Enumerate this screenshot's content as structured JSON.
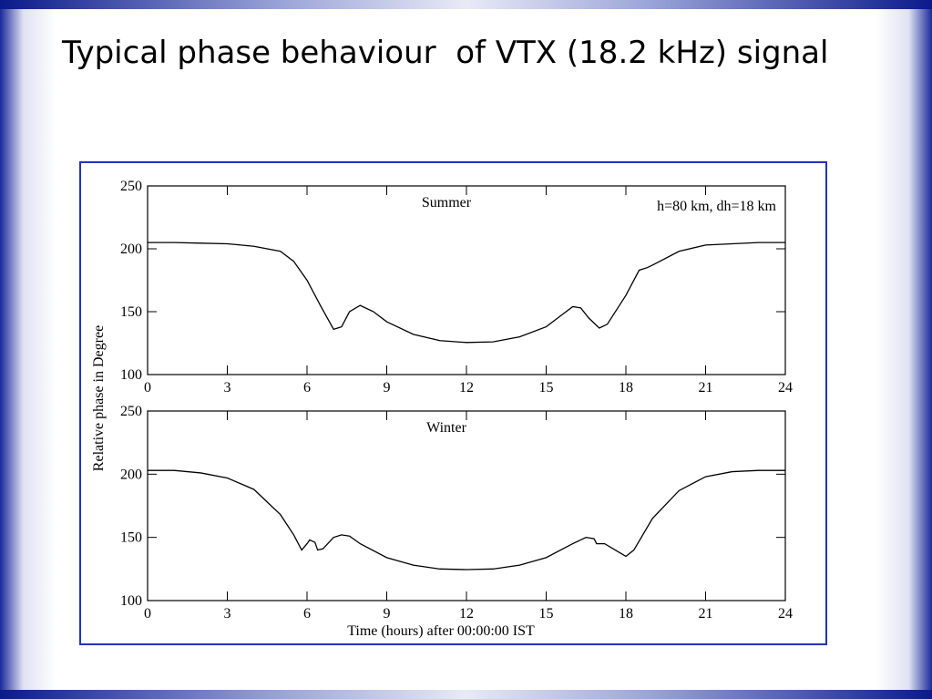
{
  "slide_title": "Typical phase behaviour  of VTX (18.2 kHz) signal",
  "ylabel": "Relative phase in Degree",
  "chart_data": [
    {
      "type": "line",
      "title": "Summer",
      "annotation": "h=80 km, dh=18 km",
      "color": "#000000",
      "x": [
        0,
        1,
        2,
        3,
        4,
        5,
        5.5,
        6,
        6.5,
        7,
        7.3,
        7.6,
        8,
        8.5,
        9,
        10,
        11,
        12,
        13,
        14,
        15,
        15.5,
        16,
        16.3,
        16.6,
        17,
        17.3,
        18,
        18.5,
        18.8,
        19,
        20,
        21,
        22,
        23,
        24
      ],
      "values": [
        205,
        205,
        204.5,
        204,
        202,
        198,
        190,
        175,
        155,
        136,
        138,
        150,
        155,
        150,
        142,
        132,
        127,
        125.5,
        126,
        130,
        138,
        146,
        154,
        153,
        145,
        137,
        140,
        163,
        183,
        185,
        187,
        198,
        203,
        204,
        205,
        205
      ],
      "xlim": [
        0,
        24
      ],
      "xticks": [
        0,
        3,
        6,
        9,
        12,
        15,
        18,
        21,
        24
      ],
      "ylim": [
        100,
        250
      ],
      "yticks": [
        100,
        150,
        200,
        250
      ]
    },
    {
      "type": "line",
      "title": "Winter",
      "xlabel": "Time (hours) after 00:00:00 IST",
      "color": "#000000",
      "x": [
        0,
        1,
        2,
        3,
        4,
        5,
        5.5,
        5.8,
        6,
        6.1,
        6.3,
        6.4,
        6.6,
        7,
        7.3,
        7.6,
        8,
        9,
        10,
        11,
        12,
        13,
        14,
        15,
        16,
        16.5,
        16.8,
        16.9,
        17.2,
        17.6,
        18,
        18.3,
        19,
        20,
        21,
        22,
        23,
        24
      ],
      "values": [
        203,
        203,
        201,
        197,
        188,
        168,
        152,
        140,
        145,
        148,
        146,
        140,
        141,
        150,
        152,
        151,
        145,
        134,
        128,
        125,
        124.5,
        125,
        128,
        134,
        145,
        150,
        149,
        145,
        145,
        140,
        135,
        140,
        165,
        187,
        198,
        202,
        203,
        203
      ],
      "xlim": [
        0,
        24
      ],
      "xticks": [
        0,
        3,
        6,
        9,
        12,
        15,
        18,
        21,
        24
      ],
      "ylim": [
        100,
        250
      ],
      "yticks": [
        100,
        150,
        200,
        250
      ]
    }
  ]
}
